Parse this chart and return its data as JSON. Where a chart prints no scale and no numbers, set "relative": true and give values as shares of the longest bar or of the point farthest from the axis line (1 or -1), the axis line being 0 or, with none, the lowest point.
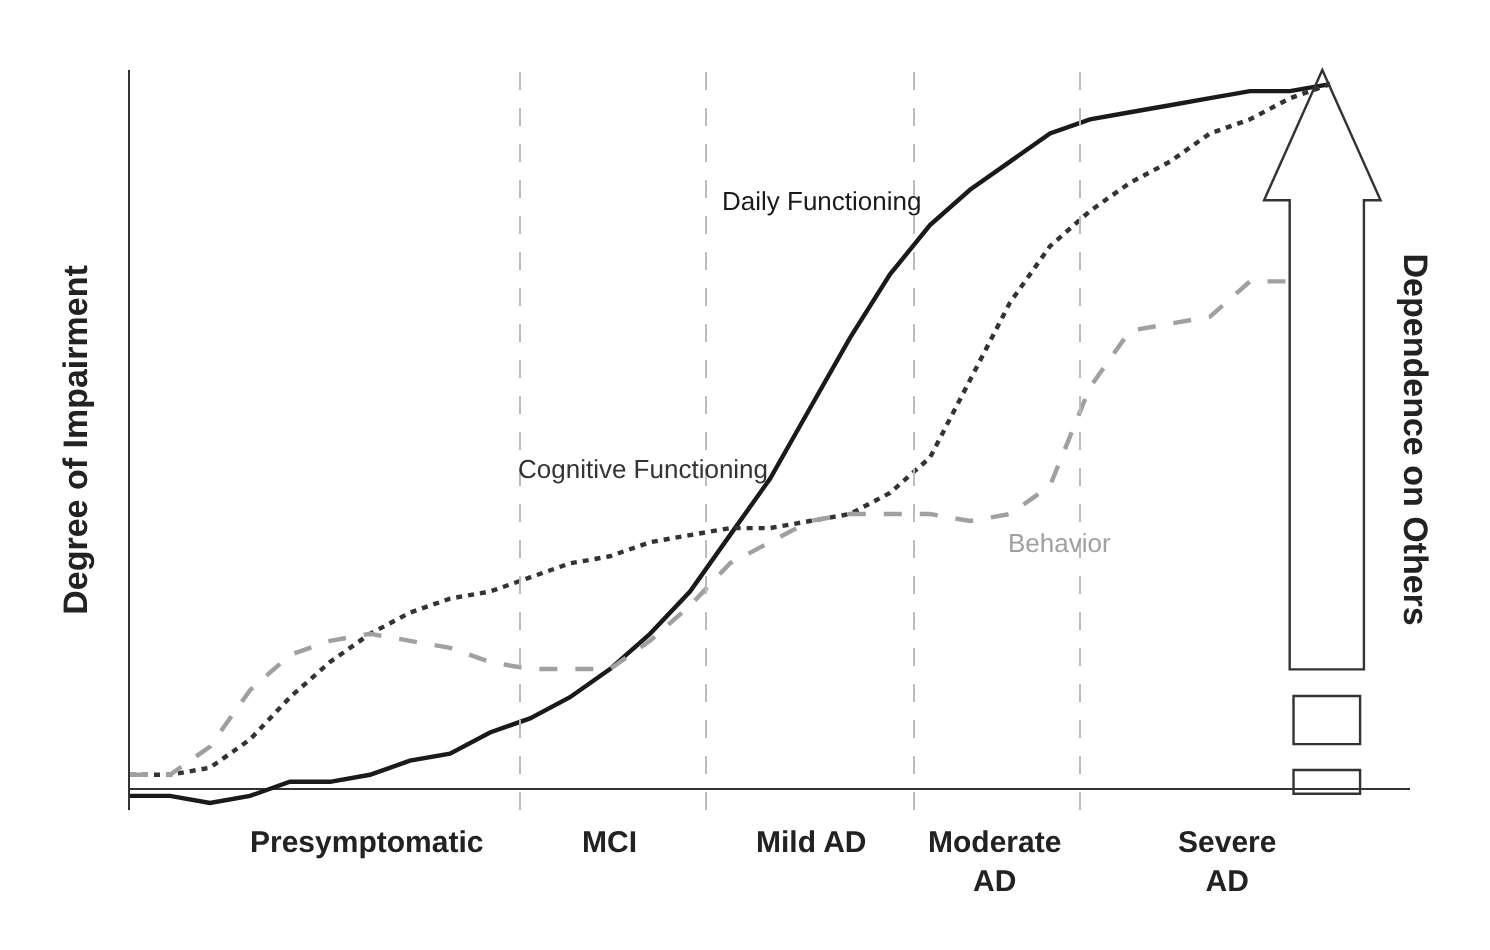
{
  "chart_data": {
    "type": "line",
    "relative": true,
    "ylabel": "Degree of Impairment",
    "categories": [
      null,
      null,
      null,
      null,
      null,
      null,
      null,
      null,
      null,
      null,
      null,
      null,
      null,
      null,
      null,
      null,
      null,
      null,
      null,
      null,
      null,
      null,
      null,
      null,
      null,
      null,
      null,
      null,
      null,
      null,
      null
    ],
    "series": [
      {
        "name": "Daily Functioning",
        "color": "#1a1a1a",
        "line_style": "solid",
        "values": [
          -0.01,
          -0.01,
          -0.02,
          -0.01,
          0.01,
          0.01,
          0.02,
          0.04,
          0.05,
          0.08,
          0.1,
          0.13,
          0.17,
          0.22,
          0.28,
          0.36,
          0.44,
          0.54,
          0.64,
          0.73,
          0.8,
          0.85,
          0.89,
          0.93,
          0.95,
          0.96,
          0.97,
          0.98,
          0.99,
          0.99,
          1.0
        ]
      },
      {
        "name": "Cognitive Functioning",
        "color": "#333333",
        "line_style": "dotted",
        "values": [
          0.02,
          0.02,
          0.03,
          0.07,
          0.13,
          0.18,
          0.22,
          0.25,
          0.27,
          0.28,
          0.3,
          0.32,
          0.33,
          0.35,
          0.36,
          0.37,
          0.37,
          0.38,
          0.39,
          0.42,
          0.47,
          0.58,
          0.69,
          0.77,
          0.82,
          0.86,
          0.89,
          0.93,
          0.95,
          0.98,
          1.0
        ]
      },
      {
        "name": "Behavior",
        "color": "#a0a0a0",
        "line_style": "dashed",
        "values": [
          0.02,
          0.02,
          0.06,
          0.14,
          0.19,
          0.21,
          0.22,
          0.21,
          0.2,
          0.18,
          0.17,
          0.17,
          0.17,
          0.21,
          0.26,
          0.32,
          0.35,
          0.38,
          0.39,
          0.39,
          0.39,
          0.38,
          0.39,
          0.43,
          0.57,
          0.65,
          0.66,
          0.67,
          0.72,
          0.72,
          null
        ]
      }
    ],
    "annotations": [
      "Dependence on Others",
      "Presymptomatic",
      "MCI",
      "Mild AD",
      "Moderate AD",
      "Severe AD"
    ],
    "legend": false
  }
}
